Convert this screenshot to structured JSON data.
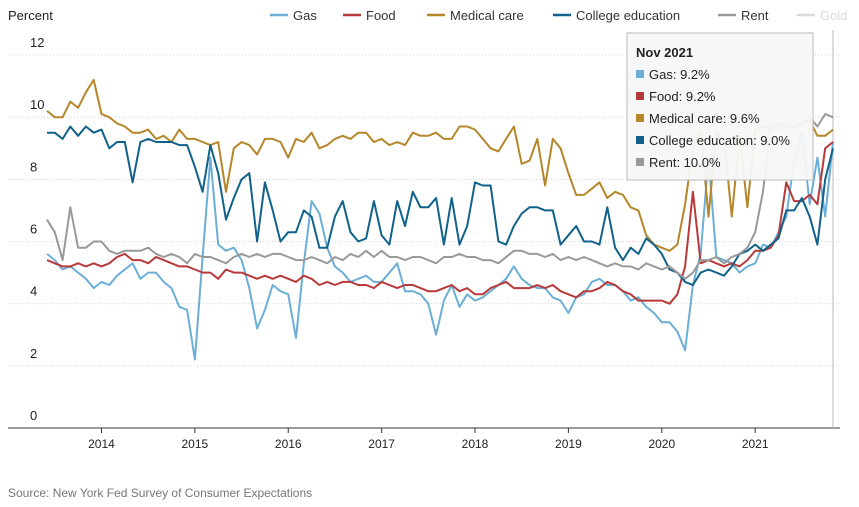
{
  "chart_data": {
    "type": "line",
    "y_label": "Percent",
    "source": "Source: New York Fed Survey of Consumer Expectations",
    "categories": [
      null,
      null,
      null,
      null,
      null,
      null,
      null,
      "2014",
      null,
      null,
      null,
      null,
      null,
      null,
      null,
      null,
      null,
      null,
      null,
      "2015",
      null,
      null,
      null,
      null,
      null,
      null,
      null,
      null,
      null,
      null,
      null,
      "2016",
      null,
      null,
      null,
      null,
      null,
      null,
      null,
      null,
      null,
      null,
      null,
      "2017",
      null,
      null,
      null,
      null,
      null,
      null,
      null,
      null,
      null,
      null,
      null,
      "2018",
      null,
      null,
      null,
      null,
      null,
      null,
      null,
      null,
      null,
      null,
      null,
      "2019",
      null,
      null,
      null,
      null,
      null,
      null,
      null,
      null,
      null,
      null,
      null,
      "2020",
      null,
      null,
      null,
      null,
      null,
      null,
      null,
      null,
      null,
      null,
      null,
      "2021",
      null,
      null,
      null,
      null,
      null,
      null,
      null,
      null,
      null,
      null
    ],
    "ylim": [
      0,
      12
    ],
    "yticks": [
      0,
      2,
      4,
      6,
      8,
      10,
      12
    ],
    "grid": true,
    "series": [
      {
        "name": "Gas",
        "color": "#6baed6",
        "values": [
          5.6,
          5.4,
          5.1,
          5.2,
          5.0,
          4.8,
          4.5,
          4.7,
          4.6,
          4.9,
          5.1,
          5.3,
          4.8,
          5.0,
          5.0,
          4.7,
          4.5,
          3.9,
          3.8,
          2.2,
          5.5,
          8.7,
          5.9,
          5.7,
          5.8,
          5.4,
          4.5,
          3.2,
          3.8,
          4.6,
          4.4,
          4.3,
          2.9,
          5.3,
          7.3,
          6.9,
          5.8,
          5.2,
          5.0,
          4.7,
          4.8,
          4.9,
          4.7,
          4.7,
          5.0,
          5.3,
          4.4,
          4.4,
          4.3,
          4.0,
          3.0,
          4.1,
          4.6,
          3.9,
          4.3,
          4.1,
          4.2,
          4.4,
          4.6,
          4.8,
          5.2,
          4.8,
          4.6,
          4.5,
          4.5,
          4.2,
          4.1,
          3.7,
          4.2,
          4.3,
          4.7,
          4.8,
          4.6,
          4.6,
          4.4,
          4.1,
          4.2,
          3.9,
          3.7,
          3.4,
          3.4,
          3.1,
          2.5,
          4.6,
          5.6,
          8.7,
          5.5,
          5.4,
          5.3,
          5.0,
          5.2,
          5.3,
          5.9,
          5.8,
          6.3,
          6.8,
          8.6,
          9.5,
          7.2,
          8.7,
          6.8,
          9.2
        ]
      },
      {
        "name": "Food",
        "color": "#b83a3a",
        "values": [
          5.4,
          5.3,
          5.2,
          5.2,
          5.3,
          5.2,
          5.3,
          5.2,
          5.3,
          5.5,
          5.6,
          5.4,
          5.4,
          5.3,
          5.5,
          5.4,
          5.3,
          5.2,
          5.2,
          5.1,
          5.0,
          5.0,
          4.8,
          5.1,
          5.0,
          5.0,
          4.9,
          4.8,
          4.9,
          4.8,
          4.9,
          4.8,
          4.7,
          4.9,
          4.8,
          4.6,
          4.7,
          4.6,
          4.7,
          4.7,
          4.6,
          4.6,
          4.5,
          4.7,
          4.6,
          4.5,
          4.6,
          4.6,
          4.5,
          4.4,
          4.4,
          4.5,
          4.6,
          4.4,
          4.5,
          4.3,
          4.3,
          4.5,
          4.6,
          4.7,
          4.5,
          4.5,
          4.5,
          4.6,
          4.5,
          4.6,
          4.4,
          4.3,
          4.2,
          4.4,
          4.4,
          4.5,
          4.7,
          4.6,
          4.4,
          4.3,
          4.1,
          4.1,
          4.1,
          4.1,
          4.0,
          4.3,
          5.2,
          7.6,
          5.3,
          5.4,
          5.3,
          5.2,
          5.3,
          5.2,
          5.4,
          5.7,
          5.7,
          5.8,
          6.2,
          7.9,
          7.3,
          7.3,
          7.5,
          7.2,
          9.0,
          9.2
        ]
      },
      {
        "name": "Medical care",
        "color": "#b5862a",
        "values": [
          10.2,
          10.0,
          10.0,
          10.5,
          10.3,
          10.8,
          11.2,
          10.1,
          10.0,
          9.8,
          9.7,
          9.5,
          9.5,
          9.6,
          9.3,
          9.4,
          9.2,
          9.6,
          9.3,
          9.3,
          9.2,
          9.1,
          9.2,
          7.6,
          9.0,
          9.2,
          9.1,
          8.8,
          9.3,
          9.3,
          9.2,
          8.7,
          9.3,
          9.2,
          9.5,
          9.0,
          9.1,
          9.3,
          9.4,
          9.3,
          9.5,
          9.5,
          9.2,
          9.3,
          9.1,
          9.2,
          9.1,
          9.5,
          9.4,
          9.4,
          9.5,
          9.3,
          9.3,
          9.7,
          9.7,
          9.6,
          9.3,
          9.0,
          8.9,
          9.3,
          9.7,
          8.5,
          8.6,
          9.3,
          7.8,
          9.3,
          9.0,
          8.2,
          7.5,
          7.5,
          7.7,
          7.9,
          7.4,
          7.6,
          7.5,
          7.1,
          7.0,
          6.2,
          5.9,
          5.8,
          5.7,
          5.9,
          7.2,
          9.0,
          9.6,
          6.8,
          9.5,
          9.3,
          6.8,
          9.4,
          7.1,
          9.6,
          9.7,
          9.6,
          9.8,
          9.7,
          9.7,
          9.8,
          9.9,
          9.4,
          9.4,
          9.6
        ]
      },
      {
        "name": "College education",
        "color": "#10628a",
        "values": [
          9.5,
          9.5,
          9.3,
          9.7,
          9.4,
          9.7,
          9.5,
          9.6,
          9.0,
          9.2,
          9.2,
          7.9,
          9.2,
          9.3,
          9.2,
          9.2,
          9.2,
          9.1,
          9.1,
          8.4,
          7.6,
          9.1,
          8.2,
          6.7,
          7.4,
          8.0,
          8.2,
          6.0,
          7.9,
          7.0,
          6.0,
          6.3,
          6.3,
          7.0,
          6.8,
          5.8,
          5.8,
          6.8,
          7.3,
          6.3,
          6.0,
          6.1,
          7.3,
          6.2,
          5.9,
          7.3,
          6.5,
          7.6,
          7.1,
          7.1,
          7.4,
          5.9,
          7.4,
          5.9,
          6.5,
          7.9,
          7.8,
          7.8,
          6.0,
          5.9,
          6.5,
          6.9,
          7.1,
          7.1,
          7.0,
          7.0,
          5.9,
          6.2,
          6.5,
          6.0,
          6.0,
          5.9,
          7.1,
          5.8,
          5.4,
          5.8,
          5.6,
          6.1,
          5.9,
          5.6,
          5.1,
          5.0,
          4.7,
          4.6,
          5.0,
          5.1,
          5.0,
          4.9,
          5.2,
          5.6,
          5.7,
          5.9,
          5.7,
          5.9,
          6.1,
          7.0,
          7.0,
          7.4,
          6.8,
          5.9,
          8.0,
          9.0
        ]
      },
      {
        "name": "Rent",
        "color": "#999999",
        "values": [
          6.7,
          6.3,
          5.4,
          7.1,
          5.8,
          5.8,
          6.0,
          6.0,
          5.7,
          5.6,
          5.7,
          5.7,
          5.7,
          5.8,
          5.6,
          5.5,
          5.6,
          5.5,
          5.3,
          5.6,
          5.5,
          5.5,
          5.4,
          5.3,
          5.5,
          5.6,
          5.5,
          5.6,
          5.5,
          5.6,
          5.6,
          5.5,
          5.4,
          5.4,
          5.5,
          5.4,
          5.3,
          5.5,
          5.4,
          5.6,
          5.5,
          5.7,
          5.5,
          5.7,
          5.5,
          5.5,
          5.4,
          5.5,
          5.5,
          5.4,
          5.3,
          5.5,
          5.5,
          5.6,
          5.5,
          5.5,
          5.4,
          5.4,
          5.3,
          5.5,
          5.7,
          5.7,
          5.6,
          5.6,
          5.5,
          5.6,
          5.4,
          5.5,
          5.4,
          5.5,
          5.4,
          5.3,
          5.2,
          5.3,
          5.2,
          5.2,
          5.1,
          5.3,
          5.2,
          5.1,
          5.2,
          5.0,
          4.8,
          5.0,
          5.4,
          5.4,
          5.5,
          5.3,
          5.5,
          5.6,
          5.8,
          6.3,
          7.6,
          9.7,
          9.6,
          9.8,
          9.7,
          9.8,
          10.0,
          9.7,
          10.1,
          10.0
        ]
      }
    ],
    "disabled_legend": [
      {
        "name": "Gold",
        "color": "#d9d9d9"
      }
    ],
    "tooltip": {
      "title": "Nov 2021",
      "items": [
        "Gas: 9.2%",
        "Food: 9.2%",
        "Medical care: 9.6%",
        "College education: 9.0%",
        "Rent: 10.0%"
      ]
    }
  }
}
